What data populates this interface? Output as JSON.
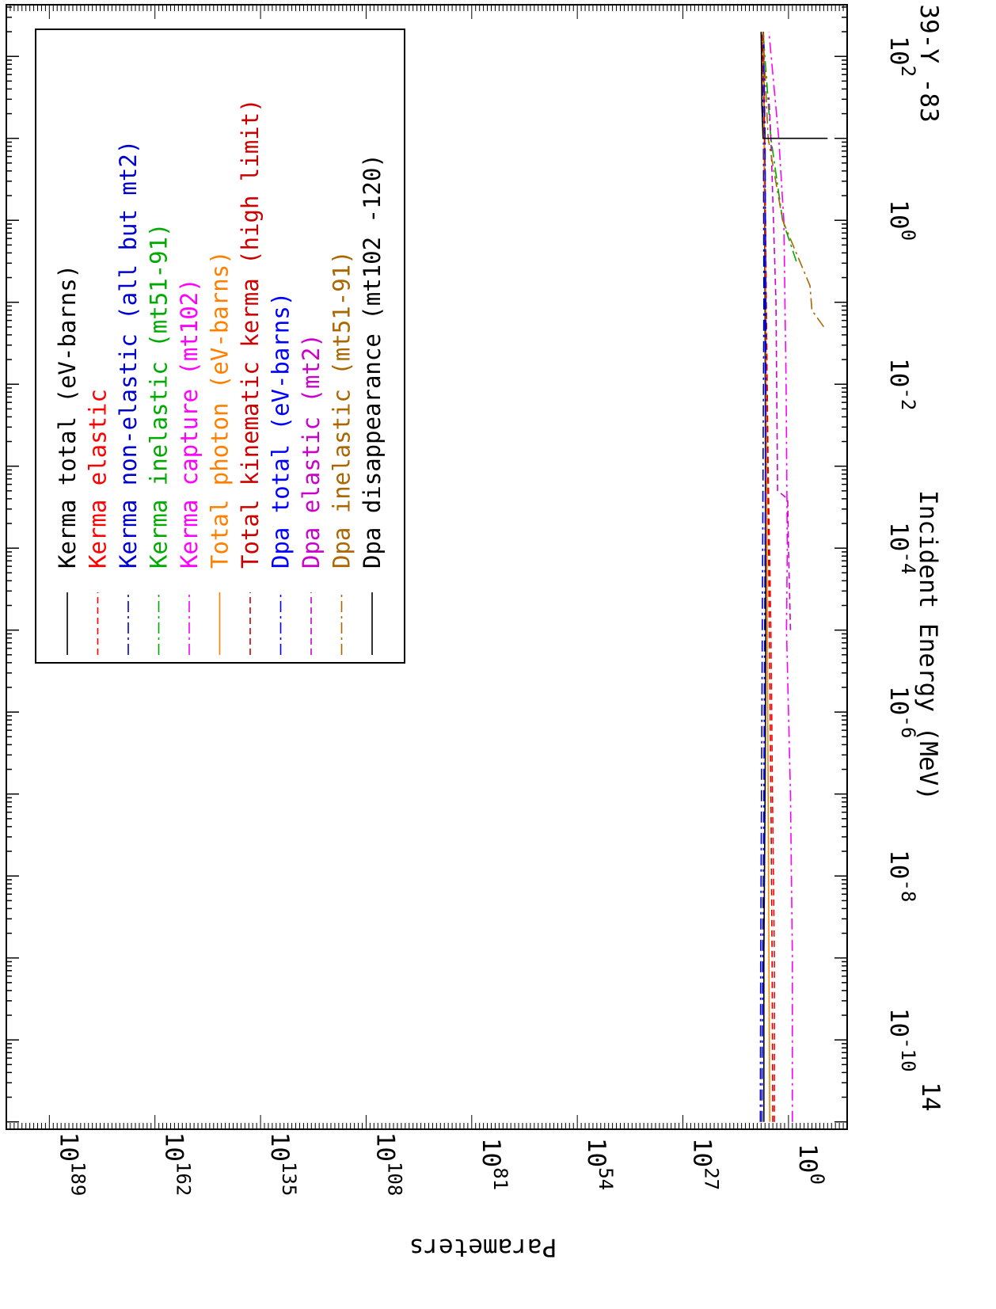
{
  "chart_data": {
    "type": "line",
    "xlabel": "Incident Energy (MeV)",
    "ylabel": "Parameters",
    "xscale": "log",
    "yscale": "log",
    "xlim": [
      1e-11,
      200
    ],
    "ylim_exponent": [
      -15,
      200
    ],
    "x_ticks": [
      {
        "base": "10",
        "exp": "-10",
        "value": -10
      },
      {
        "base": "10",
        "exp": "-8",
        "value": -8
      },
      {
        "base": "10",
        "exp": "-6",
        "value": -6
      },
      {
        "base": "10",
        "exp": "-4",
        "value": -4
      },
      {
        "base": "10",
        "exp": "-2",
        "value": -2
      },
      {
        "base": "10",
        "exp": "0",
        "value": 0
      },
      {
        "base": "10",
        "exp": "2",
        "value": 2
      }
    ],
    "y_ticks": [
      {
        "base": "10",
        "exp": "0",
        "value": 0
      },
      {
        "base": "10",
        "exp": "27",
        "value": 27
      },
      {
        "base": "10",
        "exp": "54",
        "value": 54
      },
      {
        "base": "10",
        "exp": "81",
        "value": 81
      },
      {
        "base": "10",
        "exp": "108",
        "value": 108
      },
      {
        "base": "10",
        "exp": "135",
        "value": 135
      },
      {
        "base": "10",
        "exp": "162",
        "value": 162
      },
      {
        "base": "10",
        "exp": "189",
        "value": 189
      }
    ],
    "extra_labels": {
      "left": "14",
      "right": "39-Y -83"
    },
    "legend_position": "top-left",
    "series": [
      {
        "name": "Kerma total  (eV-barns)",
        "color": "#000000",
        "dash": "solid",
        "points": [
          [
            -11,
            6.3
          ],
          [
            -9,
            6.3
          ],
          [
            -7,
            6.0
          ],
          [
            -5,
            5.8
          ],
          [
            -3,
            5.9
          ],
          [
            -1,
            6.0
          ],
          [
            1,
            6.2
          ],
          [
            2.3,
            6.4
          ]
        ]
      },
      {
        "name": "Kerma elastic",
        "color": "#ff0000",
        "dash": "dashed",
        "points": [
          [
            -11,
            3.6
          ],
          [
            -9,
            3.6
          ],
          [
            -7,
            4.1
          ],
          [
            -5,
            4.5
          ],
          [
            -3,
            5.2
          ],
          [
            -1,
            5.7
          ],
          [
            1,
            6.1
          ],
          [
            2.3,
            6.5
          ]
        ]
      },
      {
        "name": "Kerma non-elastic (all but mt2)",
        "color": "#0000cc",
        "dash": "dashdot",
        "points": [
          [
            -11,
            7.2
          ],
          [
            -9,
            7.1
          ],
          [
            -7,
            6.9
          ],
          [
            -5,
            6.7
          ],
          [
            -3,
            6.5
          ],
          [
            -1,
            6.3
          ],
          [
            1,
            6.4
          ],
          [
            2.3,
            6.8
          ]
        ]
      },
      {
        "name": "Kerma inelastic (mt51-91)",
        "color": "#00aa00",
        "dash": "dashdot",
        "points": [
          [
            -0.5,
            -2.0
          ],
          [
            0,
            1.5
          ],
          [
            0.5,
            3.0
          ],
          [
            1,
            4.5
          ],
          [
            2.3,
            6.5
          ]
        ]
      },
      {
        "name": "Kerma capture (mt102)",
        "color": "#ff00ff",
        "dash": "dashdot",
        "points": [
          [
            -11,
            -1.0
          ],
          [
            -9,
            -1.0
          ],
          [
            -7,
            -0.5
          ],
          [
            -5,
            0.5
          ],
          [
            -4,
            0.3
          ],
          [
            -2,
            0.6
          ],
          [
            0,
            1.2
          ],
          [
            1,
            2.5
          ],
          [
            2.3,
            5.0
          ]
        ]
      },
      {
        "name": "Total photon (eV-barns)",
        "color": "#ff8000",
        "dash": "solid",
        "points": [
          [
            -11,
            4.8
          ],
          [
            -9,
            5.0
          ],
          [
            -7,
            5.2
          ],
          [
            -5,
            5.4
          ],
          [
            -3,
            5.6
          ],
          [
            -1,
            5.8
          ],
          [
            1,
            6.2
          ],
          [
            2.3,
            6.6
          ]
        ]
      },
      {
        "name": "Total kinematic kerma (high limit)",
        "color": "#cc0000",
        "dash": "dashed",
        "points": [
          [
            -11,
            4.0
          ],
          [
            -9,
            4.2
          ],
          [
            -7,
            4.5
          ],
          [
            -5,
            4.9
          ],
          [
            -3,
            5.3
          ],
          [
            -1,
            5.7
          ],
          [
            1,
            6.1
          ],
          [
            2.3,
            6.7
          ]
        ]
      },
      {
        "name": "Dpa total (eV-barns)",
        "color": "#0000ff",
        "dash": "dashdot",
        "points": [
          [
            -11,
            6.8
          ],
          [
            -9,
            6.6
          ],
          [
            -7,
            6.3
          ],
          [
            -5,
            6.1
          ],
          [
            -3,
            5.9
          ],
          [
            -1,
            5.8
          ],
          [
            1,
            6.0
          ],
          [
            2.3,
            6.4
          ]
        ]
      },
      {
        "name": "Dpa elastic (mt2)",
        "color": "#cc00cc",
        "dash": "dashed",
        "points": [
          [
            -5,
            -0.5
          ],
          [
            -4,
            0.0
          ],
          [
            -3.4,
            0.2
          ],
          [
            -3.3,
            2.8
          ],
          [
            -1,
            3.2
          ],
          [
            1,
            4.5
          ],
          [
            1.5,
            5.0
          ]
        ]
      },
      {
        "name": "Dpa inelastic (mt51-91)",
        "color": "#aa6600",
        "dash": "dashdot",
        "points": [
          [
            -1.3,
            -9.0
          ],
          [
            -1.1,
            -6.0
          ],
          [
            -0.8,
            -5.5
          ],
          [
            0,
            1.5
          ],
          [
            1,
            5.2
          ],
          [
            2.3,
            6.5
          ]
        ]
      },
      {
        "name": "Dpa disappearance (mt102 -120)",
        "color": "#000000",
        "dash": "solid",
        "points": [
          [
            1.0,
            -10.0
          ],
          [
            1.0,
            6.5
          ],
          [
            1.4,
            6.8
          ],
          [
            2.0,
            6.9
          ],
          [
            2.3,
            7.0
          ]
        ]
      }
    ]
  }
}
